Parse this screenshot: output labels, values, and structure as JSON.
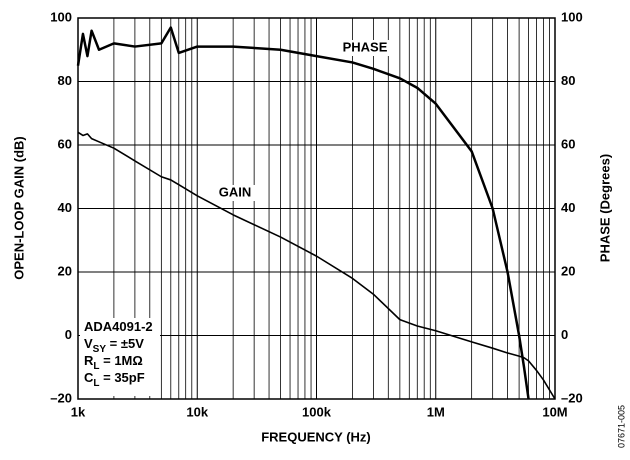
{
  "chart_data": {
    "type": "line",
    "x_label": "FREQUENCY (Hz)",
    "y_label": "OPEN-LOOP GAIN (dB)",
    "y2_label": "PHASE (Degrees)",
    "xscale": "log",
    "grid": true,
    "minor_grid": true,
    "xlim": [
      1000,
      10000000
    ],
    "xticks": [
      {
        "value": 1000,
        "label": "1k"
      },
      {
        "value": 10000,
        "label": "10k"
      },
      {
        "value": 100000,
        "label": "100k"
      },
      {
        "value": 1000000,
        "label": "1M"
      },
      {
        "value": 10000000,
        "label": "10M"
      }
    ],
    "ylim": [
      -20,
      100
    ],
    "yticks": [
      {
        "value": -20,
        "label": "–20"
      },
      0,
      20,
      40,
      60,
      80,
      100
    ],
    "y2lim": [
      -20,
      100
    ],
    "y2ticks": [
      {
        "value": -20,
        "label": "–20"
      },
      0,
      20,
      40,
      60,
      80,
      100
    ],
    "x": [
      1000,
      1100,
      1200,
      1300,
      1500,
      2000,
      3000,
      5000,
      6000,
      7000,
      10000,
      20000,
      50000,
      100000,
      200000,
      300000,
      500000,
      700000,
      1000000,
      2000000,
      3000000,
      4000000,
      5000000,
      5500000,
      6000000,
      7000000,
      8000000,
      10000000
    ],
    "series": [
      {
        "name": "GAIN",
        "color": "#000000",
        "values": [
          64,
          63,
          63.5,
          62,
          61,
          59,
          55,
          50,
          49,
          47.5,
          44,
          38,
          31,
          25,
          18,
          13,
          5,
          3,
          1.5,
          -2,
          -4,
          -5.5,
          -6.5,
          -7,
          -8,
          -11,
          -14,
          -20
        ]
      },
      {
        "name": "PHASE",
        "color": "#000000",
        "axis": "y2",
        "values": [
          85,
          95,
          88,
          96,
          90,
          92,
          91,
          92,
          97,
          89,
          91,
          91,
          90,
          88,
          86,
          84,
          81,
          78,
          73,
          58,
          40,
          20,
          0,
          -10,
          -20,
          null,
          null,
          null
        ]
      }
    ],
    "annotation": [
      {
        "text": "ADA4091-2"
      },
      {
        "text": "V",
        "sub": "SY",
        "after": " = ±5V"
      },
      {
        "text": "R",
        "sub": "L",
        "after": " = 1MΩ"
      },
      {
        "text": "C",
        "sub": "L",
        "after": " = 35pF"
      }
    ],
    "figure_id": "07671-005"
  }
}
